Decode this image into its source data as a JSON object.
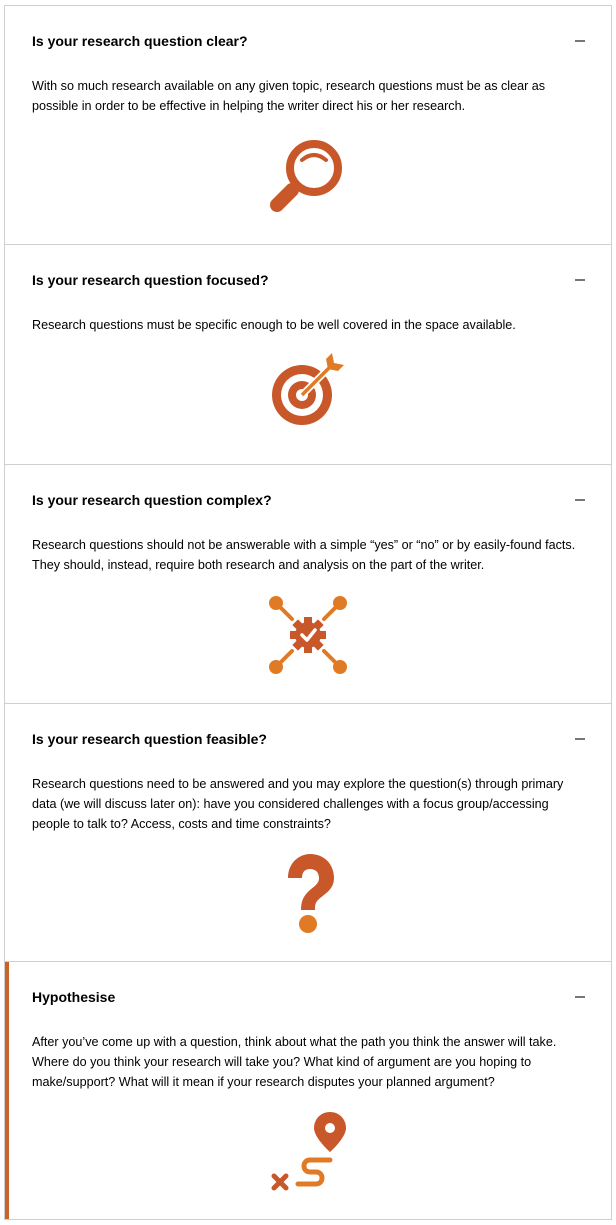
{
  "panels": [
    {
      "title": "Is your research question clear?",
      "body": "With so much research available on any given topic, research questions must be as clear as possible in order to be effective in helping the writer direct his or her research.",
      "icon": "magnifier-icon",
      "expanded": true
    },
    {
      "title": "Is your research question focused?",
      "body": "Research questions must be specific enough to be well covered in the space available.",
      "icon": "target-arrow-icon",
      "expanded": true
    },
    {
      "title": "Is your research question complex?",
      "body": "Research questions should not be answerable with a simple “yes” or “no” or by easily-found facts. They should, instead, require both research and analysis on the part of the writer.",
      "icon": "network-gear-icon",
      "expanded": true
    },
    {
      "title": "Is your research question feasible?",
      "body": "Research questions need to be answered and you may explore the question(s) through primary data (we will discuss later on): have you considered challenges with a focus group/accessing people to talk to? Access, costs and time constraints?",
      "icon": "question-mark-icon",
      "expanded": true
    },
    {
      "title": "Hypothesise",
      "body": "After you’ve come up with a question, think about what the path you think the answer will take. Where do you think your research will take you? What kind of argument are you hoping to make/support? What will it mean if your research disputes your planned argument?",
      "icon": "route-pin-icon",
      "expanded": true
    }
  ],
  "colors": {
    "accent_dark": "#c8582a",
    "accent_light": "#e07a25",
    "border": "#cfcfcf"
  }
}
